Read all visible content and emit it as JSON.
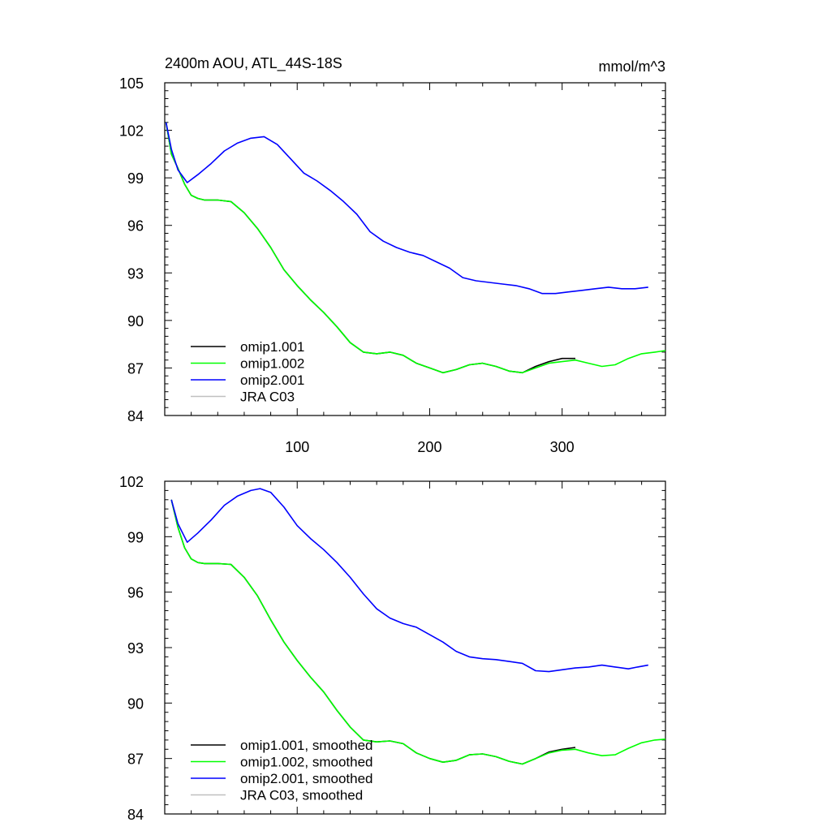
{
  "chart_data": [
    {
      "type": "line",
      "title": "2400m AOU, ATL_44S-18S",
      "units": "mmol/m^3",
      "xlim": [
        0,
        378
      ],
      "ylim": [
        84,
        105
      ],
      "x_ticks": [
        100,
        200,
        300
      ],
      "y_ticks": [
        84,
        87,
        90,
        93,
        96,
        99,
        102,
        105
      ],
      "grid": false,
      "legend_position": "lower-left",
      "series": [
        {
          "name": "omip1.001",
          "color": "#000000",
          "points": [
            [
              1,
              102.5
            ],
            [
              5,
              100.5
            ],
            [
              10,
              99.6
            ],
            [
              15,
              98.6
            ],
            [
              20,
              97.9
            ],
            [
              25,
              97.7
            ],
            [
              30,
              97.6
            ],
            [
              40,
              97.6
            ],
            [
              50,
              97.5
            ],
            [
              60,
              96.8
            ],
            [
              70,
              95.8
            ],
            [
              80,
              94.6
            ],
            [
              90,
              93.2
            ],
            [
              100,
              92.2
            ],
            [
              110,
              91.3
            ],
            [
              120,
              90.5
            ],
            [
              130,
              89.6
            ],
            [
              140,
              88.6
            ],
            [
              150,
              88.0
            ],
            [
              160,
              87.9
            ],
            [
              170,
              88.0
            ],
            [
              180,
              87.8
            ],
            [
              190,
              87.3
            ],
            [
              200,
              87.0
            ],
            [
              210,
              86.7
            ],
            [
              220,
              86.9
            ],
            [
              230,
              87.2
            ],
            [
              240,
              87.3
            ],
            [
              250,
              87.1
            ],
            [
              260,
              86.8
            ],
            [
              270,
              86.7
            ],
            [
              280,
              87.1
            ],
            [
              290,
              87.4
            ],
            [
              300,
              87.6
            ],
            [
              310,
              87.6
            ]
          ]
        },
        {
          "name": "omip1.002",
          "color": "#00ff00",
          "points": [
            [
              1,
              102.5
            ],
            [
              5,
              100.5
            ],
            [
              10,
              99.6
            ],
            [
              15,
              98.6
            ],
            [
              20,
              97.9
            ],
            [
              25,
              97.7
            ],
            [
              30,
              97.6
            ],
            [
              40,
              97.6
            ],
            [
              50,
              97.5
            ],
            [
              60,
              96.8
            ],
            [
              70,
              95.8
            ],
            [
              80,
              94.6
            ],
            [
              90,
              93.2
            ],
            [
              100,
              92.2
            ],
            [
              110,
              91.3
            ],
            [
              120,
              90.5
            ],
            [
              130,
              89.6
            ],
            [
              140,
              88.6
            ],
            [
              150,
              88.0
            ],
            [
              160,
              87.9
            ],
            [
              170,
              88.0
            ],
            [
              180,
              87.8
            ],
            [
              190,
              87.3
            ],
            [
              200,
              87.0
            ],
            [
              210,
              86.7
            ],
            [
              220,
              86.9
            ],
            [
              230,
              87.2
            ],
            [
              240,
              87.3
            ],
            [
              250,
              87.1
            ],
            [
              260,
              86.8
            ],
            [
              270,
              86.7
            ],
            [
              280,
              87.0
            ],
            [
              290,
              87.3
            ],
            [
              300,
              87.4
            ],
            [
              310,
              87.5
            ],
            [
              320,
              87.3
            ],
            [
              330,
              87.1
            ],
            [
              340,
              87.2
            ],
            [
              350,
              87.6
            ],
            [
              360,
              87.9
            ],
            [
              370,
              88.0
            ],
            [
              378,
              88.1
            ]
          ]
        },
        {
          "name": "omip2.001",
          "color": "#0000ff",
          "points": [
            [
              1,
              102.5
            ],
            [
              5,
              100.8
            ],
            [
              10,
              99.5
            ],
            [
              17,
              98.7
            ],
            [
              25,
              99.2
            ],
            [
              35,
              99.9
            ],
            [
              45,
              100.7
            ],
            [
              55,
              101.2
            ],
            [
              65,
              101.5
            ],
            [
              75,
              101.6
            ],
            [
              85,
              101.1
            ],
            [
              95,
              100.2
            ],
            [
              105,
              99.3
            ],
            [
              115,
              98.8
            ],
            [
              125,
              98.2
            ],
            [
              135,
              97.5
            ],
            [
              145,
              96.7
            ],
            [
              155,
              95.6
            ],
            [
              165,
              95.0
            ],
            [
              175,
              94.6
            ],
            [
              185,
              94.3
            ],
            [
              195,
              94.1
            ],
            [
              205,
              93.7
            ],
            [
              215,
              93.3
            ],
            [
              225,
              92.7
            ],
            [
              235,
              92.5
            ],
            [
              245,
              92.4
            ],
            [
              255,
              92.3
            ],
            [
              265,
              92.2
            ],
            [
              275,
              92.0
            ],
            [
              285,
              91.7
            ],
            [
              295,
              91.7
            ],
            [
              305,
              91.8
            ],
            [
              315,
              91.9
            ],
            [
              325,
              92.0
            ],
            [
              335,
              92.1
            ],
            [
              345,
              92.0
            ],
            [
              355,
              92.0
            ],
            [
              365,
              92.1
            ]
          ]
        },
        {
          "name": "JRA C03",
          "color": "#c0c0c0",
          "points": []
        }
      ]
    },
    {
      "type": "line",
      "xlim": [
        0,
        378
      ],
      "ylim": [
        84,
        102
      ],
      "y_ticks": [
        84,
        87,
        90,
        93,
        96,
        99,
        102
      ],
      "grid": false,
      "legend_position": "lower-left",
      "series": [
        {
          "name": "omip1.001, smoothed",
          "color": "#000000",
          "points": [
            [
              5,
              101.0
            ],
            [
              10,
              99.5
            ],
            [
              15,
              98.4
            ],
            [
              20,
              97.8
            ],
            [
              25,
              97.6
            ],
            [
              30,
              97.55
            ],
            [
              40,
              97.55
            ],
            [
              50,
              97.5
            ],
            [
              60,
              96.8
            ],
            [
              70,
              95.8
            ],
            [
              80,
              94.5
            ],
            [
              90,
              93.3
            ],
            [
              100,
              92.3
            ],
            [
              110,
              91.4
            ],
            [
              120,
              90.6
            ],
            [
              130,
              89.6
            ],
            [
              140,
              88.7
            ],
            [
              150,
              88.0
            ],
            [
              160,
              87.9
            ],
            [
              170,
              87.95
            ],
            [
              180,
              87.8
            ],
            [
              190,
              87.3
            ],
            [
              200,
              87.0
            ],
            [
              210,
              86.8
            ],
            [
              220,
              86.9
            ],
            [
              230,
              87.2
            ],
            [
              240,
              87.25
            ],
            [
              250,
              87.1
            ],
            [
              260,
              86.85
            ],
            [
              270,
              86.7
            ],
            [
              280,
              87.0
            ],
            [
              290,
              87.35
            ],
            [
              300,
              87.5
            ],
            [
              310,
              87.6
            ]
          ]
        },
        {
          "name": "omip1.002, smoothed",
          "color": "#00ff00",
          "points": [
            [
              5,
              101.0
            ],
            [
              10,
              99.5
            ],
            [
              15,
              98.4
            ],
            [
              20,
              97.8
            ],
            [
              25,
              97.6
            ],
            [
              30,
              97.55
            ],
            [
              40,
              97.55
            ],
            [
              50,
              97.5
            ],
            [
              60,
              96.8
            ],
            [
              70,
              95.8
            ],
            [
              80,
              94.5
            ],
            [
              90,
              93.3
            ],
            [
              100,
              92.3
            ],
            [
              110,
              91.4
            ],
            [
              120,
              90.6
            ],
            [
              130,
              89.6
            ],
            [
              140,
              88.7
            ],
            [
              150,
              88.0
            ],
            [
              160,
              87.9
            ],
            [
              170,
              87.95
            ],
            [
              180,
              87.8
            ],
            [
              190,
              87.3
            ],
            [
              200,
              87.0
            ],
            [
              210,
              86.8
            ],
            [
              220,
              86.9
            ],
            [
              230,
              87.2
            ],
            [
              240,
              87.25
            ],
            [
              250,
              87.1
            ],
            [
              260,
              86.85
            ],
            [
              270,
              86.7
            ],
            [
              280,
              87.0
            ],
            [
              290,
              87.3
            ],
            [
              300,
              87.45
            ],
            [
              310,
              87.5
            ],
            [
              320,
              87.3
            ],
            [
              330,
              87.15
            ],
            [
              340,
              87.2
            ],
            [
              350,
              87.55
            ],
            [
              360,
              87.85
            ],
            [
              370,
              88.0
            ],
            [
              378,
              88.05
            ]
          ]
        },
        {
          "name": "omip2.001, smoothed",
          "color": "#0000ff",
          "points": [
            [
              5,
              101.0
            ],
            [
              10,
              99.7
            ],
            [
              17,
              98.7
            ],
            [
              25,
              99.2
            ],
            [
              35,
              99.9
            ],
            [
              45,
              100.7
            ],
            [
              55,
              101.2
            ],
            [
              65,
              101.5
            ],
            [
              72,
              101.6
            ],
            [
              80,
              101.4
            ],
            [
              90,
              100.6
            ],
            [
              100,
              99.6
            ],
            [
              110,
              98.9
            ],
            [
              120,
              98.3
            ],
            [
              130,
              97.6
            ],
            [
              140,
              96.8
            ],
            [
              150,
              95.9
            ],
            [
              160,
              95.1
            ],
            [
              170,
              94.6
            ],
            [
              180,
              94.3
            ],
            [
              190,
              94.1
            ],
            [
              200,
              93.7
            ],
            [
              210,
              93.3
            ],
            [
              220,
              92.8
            ],
            [
              230,
              92.5
            ],
            [
              240,
              92.4
            ],
            [
              250,
              92.35
            ],
            [
              260,
              92.25
            ],
            [
              270,
              92.15
            ],
            [
              280,
              91.75
            ],
            [
              290,
              91.7
            ],
            [
              300,
              91.8
            ],
            [
              310,
              91.9
            ],
            [
              320,
              91.95
            ],
            [
              330,
              92.05
            ],
            [
              340,
              91.95
            ],
            [
              350,
              91.85
            ],
            [
              357,
              91.95
            ],
            [
              365,
              92.05
            ]
          ]
        },
        {
          "name": "JRA C03, smoothed",
          "color": "#c0c0c0",
          "points": []
        }
      ]
    }
  ]
}
